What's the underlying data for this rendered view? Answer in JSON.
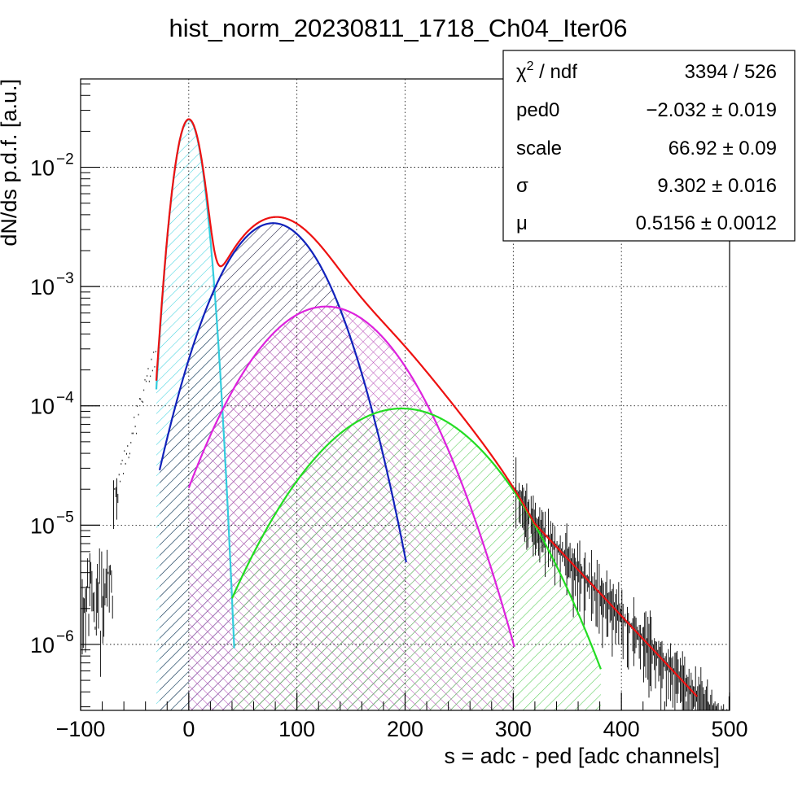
{
  "chart_data": {
    "type": "line",
    "title": "hist_norm_20230811_1718_Ch04_Iter06",
    "xlabel": "s = adc - ped [adc channels]",
    "ylabel": "dN/ds p.d.f. [a.u.]",
    "xlim": [
      -100,
      500
    ],
    "ylim": [
      2.8e-07,
      0.055
    ],
    "yscale": "log",
    "grid": true,
    "x_ticks": [
      -100,
      0,
      100,
      200,
      300,
      400,
      500
    ],
    "x_tick_labels": [
      "−100",
      "0",
      "100",
      "200",
      "300",
      "400",
      "500"
    ],
    "y_ticks": [
      {
        "value": 1e-06,
        "mantissa": "10",
        "exponent": "−6"
      },
      {
        "value": 1e-05,
        "mantissa": "10",
        "exponent": "−5"
      },
      {
        "value": 0.0001,
        "mantissa": "10",
        "exponent": "−4"
      },
      {
        "value": 0.001,
        "mantissa": "10",
        "exponent": "−3"
      },
      {
        "value": 0.01,
        "mantissa": "10",
        "exponent": "−2"
      }
    ],
    "components": [
      {
        "role": "pedestal",
        "color": "#33ccdd",
        "hatch": "#44d4e0",
        "mu": 0,
        "sigma": 9.3,
        "amp": 0.025,
        "xmin": -30,
        "xmax": 42
      },
      {
        "role": "1pe",
        "color": "#1122bb",
        "hatch": "#222244",
        "mu": 78,
        "sigma": 34,
        "amp": 0.0034,
        "xmin": -27,
        "xmax": 201
      },
      {
        "role": "2pe",
        "color": "#dd22dd",
        "hatch": "#bb55bb",
        "mu": 127,
        "sigma": 48,
        "amp": 0.00068,
        "xmin": 0,
        "xmax": 301
      },
      {
        "role": "3pe",
        "color": "#22dd22",
        "hatch": "#55cc55",
        "mu": 197,
        "sigma": 58,
        "amp": 9.5e-05,
        "xmin": 40,
        "xmax": 381
      }
    ],
    "total_fit_color": "#ee1111",
    "total_fit_xrange": [
      -30,
      470
    ],
    "data_color": "#000000",
    "stats_box": {
      "rows": [
        {
          "label": "χ",
          "label_sup": "2",
          "label_rest": " / ndf",
          "value": "3394 / 526"
        },
        {
          "label": "ped0",
          "label_sup": "",
          "label_rest": "",
          "value": "−2.032 ± 0.019"
        },
        {
          "label": "scale",
          "label_sup": "",
          "label_rest": "",
          "value": "66.92 ± 0.09"
        },
        {
          "label": "σ",
          "label_sup": "",
          "label_rest": "",
          "value": "9.302 ± 0.016"
        },
        {
          "label": "μ",
          "label_sup": "",
          "label_rest": "",
          "value": "0.5156 ± 0.0012"
        }
      ]
    }
  }
}
